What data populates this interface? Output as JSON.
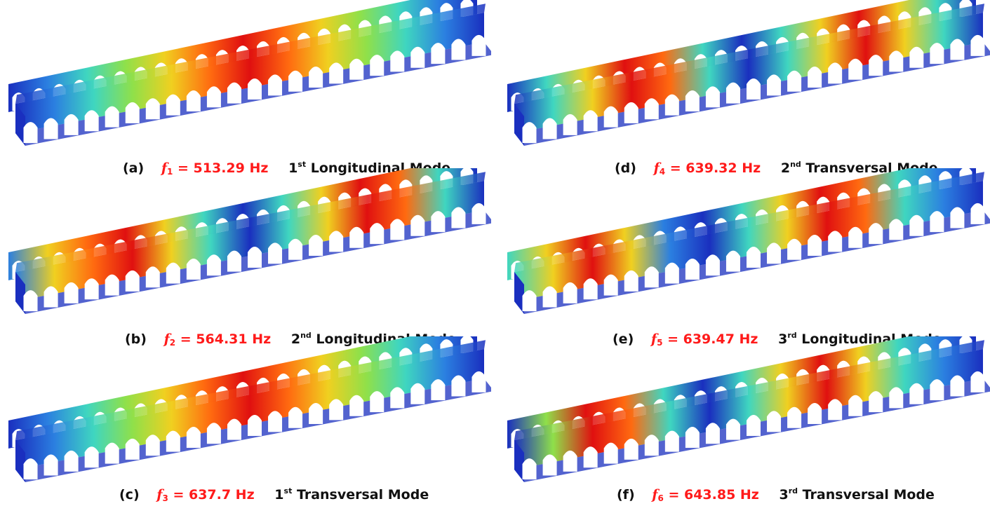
{
  "panels": [
    {
      "label": "(a)",
      "f_symbol": "f",
      "f_index": "1",
      "freq_value": "= 513.29 Hz",
      "ordinal": "1",
      "ordinal_suffix": "st",
      "mode_name": "Longitudinal Mode",
      "colors": [
        "#1a2fbf",
        "#2b7fe0",
        "#3fd6c0",
        "#8fe04a",
        "#f0d020",
        "#ff6a10",
        "#e01010",
        "#ff6a10",
        "#f0d020",
        "#8fe04a",
        "#3fd6c0",
        "#2b7fe0",
        "#1a2fbf"
      ]
    },
    {
      "label": "(b)",
      "f_symbol": "f",
      "f_index": "2",
      "freq_value": "= 564.31 Hz",
      "ordinal": "2",
      "ordinal_suffix": "nd",
      "mode_name": "Longitudinal Mode",
      "colors": [
        "#2b7fe0",
        "#f0d020",
        "#ff6a10",
        "#e01010",
        "#f0d020",
        "#3fd6c0",
        "#1a2fbf",
        "#3fd6c0",
        "#f0d020",
        "#e01010",
        "#ff6a10",
        "#3fd6c0",
        "#1a2fbf"
      ]
    },
    {
      "label": "(c)",
      "f_symbol": "f",
      "f_index": "3",
      "freq_value": "= 637.7 Hz",
      "ordinal": "1",
      "ordinal_suffix": "st",
      "mode_name": "Transversal Mode",
      "colors": [
        "#1a2fbf",
        "#2b7fe0",
        "#3fd6c0",
        "#8fe04a",
        "#f0d020",
        "#ff6a10",
        "#e01010",
        "#ff6a10",
        "#f0d020",
        "#8fe04a",
        "#3fd6c0",
        "#2b7fe0",
        "#1a2fbf"
      ]
    },
    {
      "label": "(d)",
      "f_symbol": "f",
      "f_index": "4",
      "freq_value": "= 639.32 Hz",
      "ordinal": "2",
      "ordinal_suffix": "nd",
      "mode_name": "Transversal Mode",
      "colors": [
        "#1a2fbf",
        "#3fd6c0",
        "#f0d020",
        "#e01010",
        "#ff6a10",
        "#3fd6c0",
        "#1a2fbf",
        "#3fd6c0",
        "#f0d020",
        "#e01010",
        "#f0d020",
        "#3fd6c0",
        "#1a2fbf"
      ]
    },
    {
      "label": "(e)",
      "f_symbol": "f",
      "f_index": "5",
      "freq_value": "= 639.47 Hz",
      "ordinal": "3",
      "ordinal_suffix": "rd",
      "mode_name": "Longitudinal Mode",
      "colors": [
        "#3fd6c0",
        "#f0d020",
        "#e01010",
        "#f0d020",
        "#2b7fe0",
        "#1a2fbf",
        "#3fd6c0",
        "#f0d020",
        "#e01010",
        "#ff6a10",
        "#3fd6c0",
        "#2b7fe0",
        "#1a2fbf"
      ]
    },
    {
      "label": "(f)",
      "f_symbol": "f",
      "f_index": "6",
      "freq_value": "= 643.85 Hz",
      "ordinal": "3",
      "ordinal_suffix": "rd",
      "mode_name": "Transversal Mode",
      "colors": [
        "#1a2fbf",
        "#8fe04a",
        "#e01010",
        "#ff6a10",
        "#3fd6c0",
        "#1a2fbf",
        "#3fd6c0",
        "#f0d020",
        "#e01010",
        "#f0d020",
        "#3fd6c0",
        "#2b7fe0",
        "#1a2fbf"
      ]
    }
  ]
}
